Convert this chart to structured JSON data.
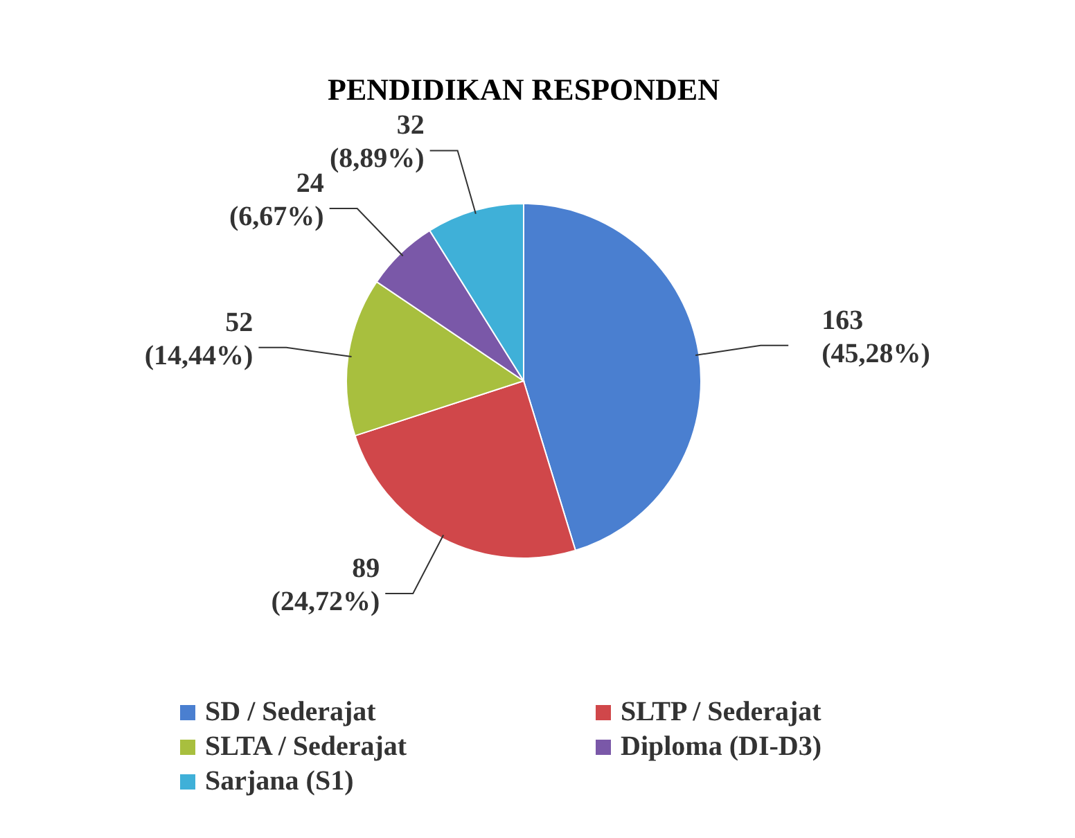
{
  "chart_data": {
    "type": "pie",
    "title": "PENDIDIKAN RESPONDEN",
    "categories": [
      "SD / Sederajat",
      "SLTP / Sederajat",
      "SLTA / Sederajat",
      "Diploma (DI-D3)",
      "Sarjana (S1)"
    ],
    "values": [
      163,
      89,
      52,
      24,
      32
    ],
    "colors": [
      "#4a7fd0",
      "#d0474a",
      "#a8bf3e",
      "#7a58a8",
      "#3fb0d8"
    ],
    "value_labels": [
      "163\n(45,28%)",
      "89\n(24,72%)",
      "52\n(14,44%)",
      "24\n(6,67%)",
      "32\n(8,89%)"
    ],
    "legend": "bottom"
  }
}
